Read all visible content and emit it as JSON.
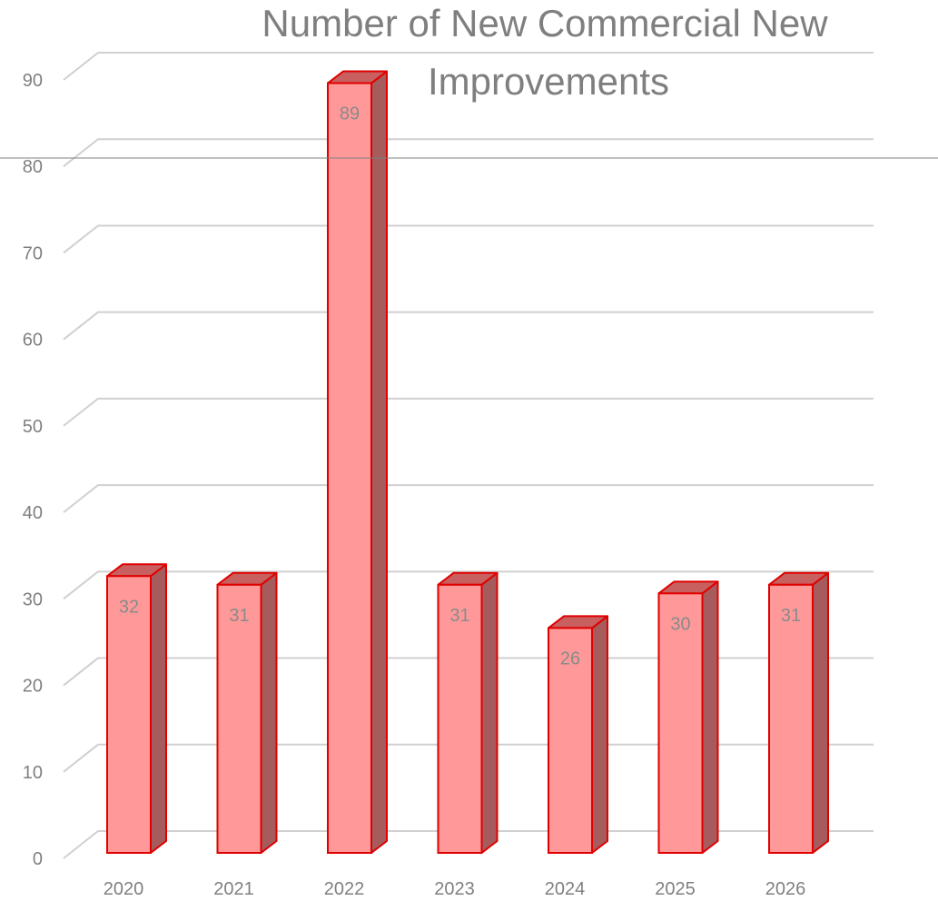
{
  "chart_data": {
    "type": "bar",
    "title": "Number of New Commercial New Improvements",
    "title_lines": [
      "Number of New Commercial New",
      "Improvements"
    ],
    "categories": [
      "2020",
      "2021",
      "2022",
      "2023",
      "2024",
      "2025",
      "2026"
    ],
    "values": [
      32,
      31,
      89,
      31,
      26,
      30,
      31
    ],
    "data_labels": [
      "32",
      "31",
      "89",
      "31",
      "26",
      "30",
      "31"
    ],
    "xlabel": "",
    "ylabel": "",
    "ylim": [
      0,
      90
    ],
    "yticks": [
      "0",
      "10",
      "20",
      "30",
      "40",
      "50",
      "60",
      "70",
      "80",
      "90"
    ],
    "grid": true,
    "legend": "none",
    "style": "3d-column",
    "colors": {
      "bar_front": "#ff9999",
      "bar_side": "#a65c5c",
      "bar_top": "#c86060",
      "bar_edge": "#e00000",
      "gridline": "#d0d0d0",
      "text": "#808080",
      "title": "#7f7f7f"
    }
  }
}
